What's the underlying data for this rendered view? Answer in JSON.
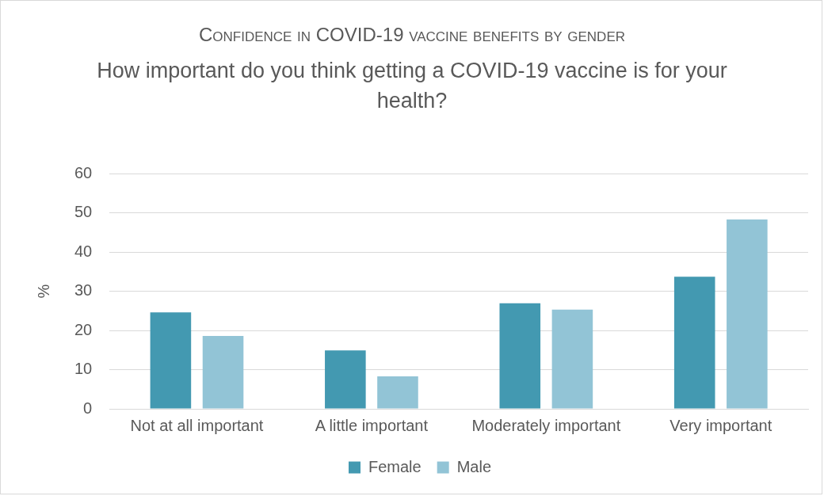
{
  "chart_data": {
    "type": "bar",
    "title": "Confidence in COVID-19 vaccine benefits by gender",
    "subtitle": "How important do you think getting a COVID-19 vaccine is for your health?",
    "ylabel": "%",
    "categories": [
      "Not at all important",
      "A little important",
      "Moderately important",
      "Very important"
    ],
    "series": [
      {
        "name": "Female",
        "color": "#4399b1",
        "values": [
          24.6,
          14.9,
          26.9,
          33.7
        ]
      },
      {
        "name": "Male",
        "color": "#92c4d6",
        "values": [
          18.6,
          8.3,
          25.3,
          48.3
        ]
      }
    ],
    "ylim": [
      0,
      60
    ],
    "yticks": [
      0,
      10,
      20,
      30,
      40,
      50,
      60
    ],
    "grid": "y",
    "legend": "bottom"
  }
}
